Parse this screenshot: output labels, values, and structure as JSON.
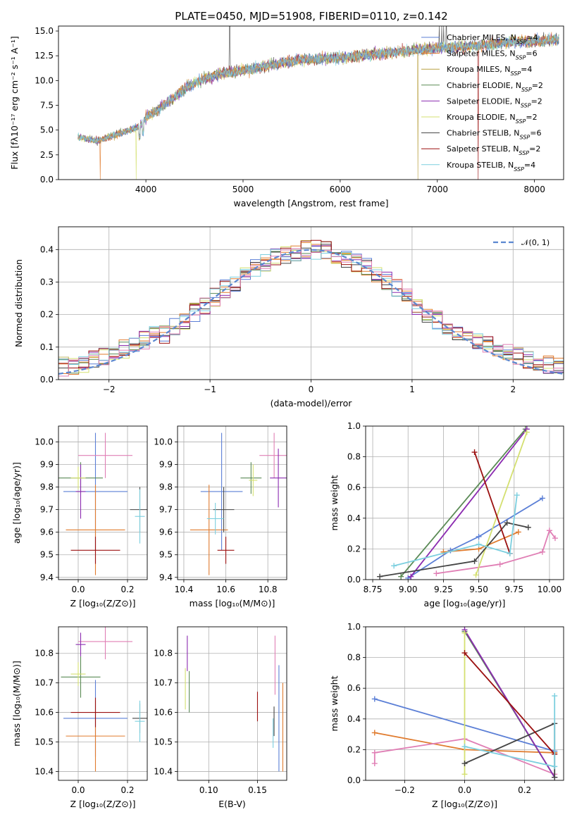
{
  "figure": {
    "title": "PLATE=0450, MJD=51908, FIBERID=0110, z=0.142"
  },
  "colors": {
    "chabrier_miles": "#5b7fd6",
    "salpeter_miles": "#e07b2e",
    "kroupa_miles": "#b8a040",
    "chabrier_elodie": "#5a8a55",
    "salpeter_elodie": "#8b2bb0",
    "kroupa_elodie": "#d4e070",
    "chabrier_stelib": "#444444",
    "salpeter_stelib": "#9b1010",
    "kroupa_stelib": "#7ccfdf",
    "gaussian": "#5b87d0",
    "pink": "#e07fb5",
    "green2": "#2d8f7a"
  },
  "chart_data": [
    {
      "id": "spectrum",
      "type": "line",
      "xlabel": "wavelength [Angstrom, rest frame]",
      "ylabel": "Flux [fλ10⁻¹⁷ erg cm⁻² s⁻¹ A⁻¹]",
      "xlim": [
        3100,
        8300
      ],
      "ylim": [
        0,
        15.5
      ],
      "xticks": [
        "4000",
        "5000",
        "6000",
        "7000",
        "8000"
      ],
      "yticks": [
        "0.0",
        "2.5",
        "5.0",
        "7.5",
        "10.0",
        "12.5",
        "15.0"
      ],
      "legend": [
        "Chabrier MILES, NSSP=4",
        "Salpeter MILES, NSSP=6",
        "Kroupa MILES, NSSP=4",
        "Chabrier ELODIE, NSSP=2",
        "Salpeter ELODIE, NSSP=2",
        "Kroupa ELODIE, NSSP=2",
        "Chabrier STELIB, NSSP=6",
        "Salpeter STELIB, NSSP=2",
        "Kroupa STELIB, NSSP=4"
      ],
      "legend_placement": "top-right",
      "grid": false,
      "continuum_x": [
        3300,
        3500,
        3700,
        3900,
        4000,
        4200,
        4400,
        4600,
        4800,
        5000,
        5200,
        5400,
        5600,
        5800,
        6000,
        6200,
        6400,
        6600,
        6800,
        7000,
        7200,
        7400,
        7600,
        7800,
        8000,
        8200
      ],
      "continuum_y": [
        4.3,
        3.9,
        4.6,
        5.2,
        6.2,
        7.6,
        9.2,
        10.2,
        10.8,
        11.0,
        11.4,
        11.8,
        12.1,
        12.2,
        12.3,
        12.5,
        12.7,
        12.9,
        13.1,
        13.3,
        13.4,
        13.5,
        13.7,
        13.9,
        14.0,
        14.1
      ]
    },
    {
      "id": "residuals",
      "type": "bar",
      "xlabel": "(data-model)/error",
      "ylabel": "Normed distribution",
      "xlim": [
        -2.5,
        2.5
      ],
      "ylim": [
        0,
        0.47
      ],
      "xticks": [
        "−2",
        "−1",
        "0",
        "1",
        "2"
      ],
      "yticks": [
        "0.0",
        "0.1",
        "0.2",
        "0.3",
        "0.4"
      ],
      "grid": true,
      "legend": [
        "𝒩(0, 1)"
      ],
      "legend_placement": "top-right"
    },
    {
      "id": "age_vs_Z",
      "type": "scatter",
      "xlabel": "Z [log₁₀(Z/Z⊙)]",
      "ylabel": "age  [log₁₀(age/yr)]",
      "xlim": [
        -0.08,
        0.28
      ],
      "ylim": [
        9.39,
        10.07
      ],
      "xticks": [
        "0.0",
        "0.2"
      ],
      "yticks": [
        "9.4",
        "9.5",
        "9.6",
        "9.7",
        "9.8",
        "9.9",
        "10.0"
      ],
      "grid": true,
      "points": [
        {
          "c": "chabrier_miles",
          "x": 0.07,
          "xe": 0.13,
          "y": 9.78,
          "ye": 0.26
        },
        {
          "c": "salpeter_miles",
          "x": 0.07,
          "xe": 0.12,
          "y": 9.61,
          "ye": 0.2
        },
        {
          "c": "pink",
          "x": 0.11,
          "xe": 0.11,
          "y": 9.94,
          "ye": 0.1
        },
        {
          "c": "chabrier_elodie",
          "x": 0.01,
          "xe": 0.09,
          "y": 9.84,
          "ye": 0.07
        },
        {
          "c": "salpeter_elodie",
          "x": 0.01,
          "xe": 0.02,
          "y": 9.78,
          "ye": 0.12
        },
        {
          "c": "kroupa_elodie",
          "x": 0.0,
          "xe": 0.03,
          "y": 9.84,
          "ye": 0.05
        },
        {
          "c": "chabrier_stelib",
          "x": 0.25,
          "xe": 0.04,
          "y": 9.7,
          "ye": 0.1
        },
        {
          "c": "salpeter_stelib",
          "x": 0.07,
          "xe": 0.1,
          "y": 9.52,
          "ye": 0.06
        },
        {
          "c": "kroupa_stelib",
          "x": 0.25,
          "xe": 0.02,
          "y": 9.67,
          "ye": 0.12
        }
      ]
    },
    {
      "id": "age_vs_mass",
      "type": "scatter",
      "xlabel": "mass [log₁₀(M/M⊙)]",
      "ylabel": "",
      "xlim": [
        10.37,
        10.89
      ],
      "ylim": [
        9.39,
        10.07
      ],
      "xticks": [
        "10.4",
        "10.6",
        "10.8"
      ],
      "yticks": [
        "9.4",
        "9.5",
        "9.6",
        "9.7",
        "9.8",
        "9.9",
        "10.0"
      ],
      "grid": true,
      "points": [
        {
          "c": "chabrier_miles",
          "x": 10.58,
          "xe": 0.1,
          "y": 9.78,
          "ye": 0.26
        },
        {
          "c": "salpeter_miles",
          "x": 10.52,
          "xe": 0.09,
          "y": 9.61,
          "ye": 0.2
        },
        {
          "c": "pink",
          "x": 10.83,
          "xe": 0.07,
          "y": 9.94,
          "ye": 0.1
        },
        {
          "c": "chabrier_elodie",
          "x": 10.72,
          "xe": 0.05,
          "y": 9.84,
          "ye": 0.07
        },
        {
          "c": "salpeter_elodie",
          "x": 10.85,
          "xe": 0.04,
          "y": 9.84,
          "ye": 0.13
        },
        {
          "c": "kroupa_elodie",
          "x": 10.73,
          "xe": 0.02,
          "y": 9.83,
          "ye": 0.07
        },
        {
          "c": "chabrier_stelib",
          "x": 10.59,
          "xe": 0.05,
          "y": 9.7,
          "ye": 0.1
        },
        {
          "c": "salpeter_stelib",
          "x": 10.6,
          "xe": 0.04,
          "y": 9.52,
          "ye": 0.06
        },
        {
          "c": "kroupa_stelib",
          "x": 10.55,
          "xe": 0.04,
          "y": 9.66,
          "ye": 0.07
        }
      ]
    },
    {
      "id": "weight_vs_age",
      "type": "line",
      "xlabel": "age  [log₁₀(age/yr)]",
      "ylabel": "mass weight",
      "xlim": [
        8.7,
        10.1
      ],
      "ylim": [
        0,
        1.0
      ],
      "xticks": [
        "8.75",
        "9.00",
        "9.25",
        "9.50",
        "9.75",
        "10.00"
      ],
      "yticks": [
        "0.0",
        "0.2",
        "0.4",
        "0.6",
        "0.8",
        "1.0"
      ],
      "grid": true,
      "series": [
        {
          "c": "chabrier_miles",
          "x": [
            9.0,
            9.3,
            9.5,
            9.95
          ],
          "y": [
            0.01,
            0.19,
            0.28,
            0.53
          ]
        },
        {
          "c": "salpeter_miles",
          "x": [
            9.25,
            9.5,
            9.78
          ],
          "y": [
            0.18,
            0.2,
            0.31
          ]
        },
        {
          "c": "pink",
          "x": [
            9.2,
            9.65,
            9.95,
            10.0,
            10.04
          ],
          "y": [
            0.04,
            0.1,
            0.18,
            0.32,
            0.27
          ]
        },
        {
          "c": "chabrier_elodie",
          "x": [
            8.95,
            9.83
          ],
          "y": [
            0.02,
            0.98
          ]
        },
        {
          "c": "salpeter_elodie",
          "x": [
            9.02,
            9.84
          ],
          "y": [
            0.02,
            0.98
          ]
        },
        {
          "c": "kroupa_elodie",
          "x": [
            9.48,
            9.84
          ],
          "y": [
            0.03,
            0.96
          ]
        },
        {
          "c": "chabrier_stelib",
          "x": [
            8.8,
            9.47,
            9.7,
            9.85
          ],
          "y": [
            0.02,
            0.12,
            0.37,
            0.34
          ]
        },
        {
          "c": "salpeter_stelib",
          "x": [
            9.47,
            9.72
          ],
          "y": [
            0.83,
            0.17
          ]
        },
        {
          "c": "kroupa_stelib",
          "x": [
            8.9,
            9.5,
            9.72,
            9.77
          ],
          "y": [
            0.09,
            0.23,
            0.17,
            0.55
          ]
        }
      ]
    },
    {
      "id": "mass_vs_Z",
      "type": "scatter",
      "xlabel": "Z [log₁₀(Z/Z⊙)]",
      "ylabel": "mass [log₁₀(M/M⊙)]",
      "xlim": [
        -0.08,
        0.28
      ],
      "ylim": [
        10.37,
        10.89
      ],
      "xticks": [
        "0.0",
        "0.2"
      ],
      "yticks": [
        "10.4",
        "10.5",
        "10.6",
        "10.7",
        "10.8"
      ],
      "grid": true,
      "points": [
        {
          "c": "chabrier_miles",
          "x": 0.07,
          "xe": 0.13,
          "y": 10.58,
          "ye": 0.13
        },
        {
          "c": "salpeter_miles",
          "x": 0.07,
          "xe": 0.12,
          "y": 10.52,
          "ye": 0.12
        },
        {
          "c": "pink",
          "x": 0.11,
          "xe": 0.11,
          "y": 10.84,
          "ye": 0.06
        },
        {
          "c": "chabrier_elodie",
          "x": 0.01,
          "xe": 0.08,
          "y": 10.72,
          "ye": 0.07
        },
        {
          "c": "salpeter_elodie",
          "x": 0.01,
          "xe": 0.02,
          "y": 10.83,
          "ye": 0.04
        },
        {
          "c": "kroupa_elodie",
          "x": 0.0,
          "xe": 0.03,
          "y": 10.73,
          "ye": 0.04
        },
        {
          "c": "chabrier_stelib",
          "x": 0.25,
          "xe": 0.03,
          "y": 10.58,
          "ye": 0.05
        },
        {
          "c": "salpeter_stelib",
          "x": 0.07,
          "xe": 0.1,
          "y": 10.6,
          "ye": 0.05
        },
        {
          "c": "kroupa_stelib",
          "x": 0.25,
          "xe": 0.02,
          "y": 10.57,
          "ye": 0.07
        }
      ]
    },
    {
      "id": "mass_vs_ebv",
      "type": "scatter",
      "xlabel": "E(B-V)",
      "ylabel": "",
      "xlim": [
        0.068,
        0.18
      ],
      "ylim": [
        10.37,
        10.89
      ],
      "xticks": [
        "0.10",
        "0.15"
      ],
      "yticks": [
        "10.4",
        "10.5",
        "10.6",
        "10.7",
        "10.8"
      ],
      "grid": true,
      "points": [
        {
          "c": "chabrier_miles",
          "x": 0.172,
          "y": 10.58,
          "ye": 0.18
        },
        {
          "c": "salpeter_miles",
          "x": 0.176,
          "y": 10.55,
          "ye": 0.15
        },
        {
          "c": "pink",
          "x": 0.168,
          "y": 10.76,
          "ye": 0.1
        },
        {
          "c": "chabrier_elodie",
          "x": 0.08,
          "y": 10.67,
          "ye": 0.07
        },
        {
          "c": "salpeter_elodie",
          "x": 0.078,
          "y": 10.8,
          "ye": 0.06
        },
        {
          "c": "kroupa_elodie",
          "x": 0.076,
          "y": 10.68,
          "ye": 0.07
        },
        {
          "c": "chabrier_stelib",
          "x": 0.167,
          "y": 10.57,
          "ye": 0.05
        },
        {
          "c": "salpeter_stelib",
          "x": 0.15,
          "y": 10.62,
          "ye": 0.05
        },
        {
          "c": "kroupa_stelib",
          "x": 0.166,
          "y": 10.53,
          "ye": 0.05
        }
      ]
    },
    {
      "id": "weight_vs_Z",
      "type": "line",
      "xlabel": "Z [log₁₀(Z/Z⊙)]",
      "ylabel": "mass weight",
      "xlim": [
        -0.33,
        0.33
      ],
      "ylim": [
        0,
        1.0
      ],
      "xticks": [
        "−0.2",
        "0.0",
        "0.2"
      ],
      "yticks": [
        "0.0",
        "0.2",
        "0.4",
        "0.6",
        "0.8",
        "1.0"
      ],
      "grid": true,
      "series": [
        {
          "c": "chabrier_miles",
          "x": [
            -0.3,
            0.3
          ],
          "y": [
            0.53,
            0.19
          ]
        },
        {
          "c": "salpeter_miles",
          "x": [
            -0.3,
            0.0,
            0.3
          ],
          "y": [
            0.31,
            0.2,
            0.18
          ]
        },
        {
          "c": "pink",
          "x": [
            -0.3,
            -0.3,
            0.0,
            0.3
          ],
          "y": [
            0.11,
            0.18,
            0.27,
            0.04
          ]
        },
        {
          "c": "chabrier_elodie",
          "x": [
            0.0,
            0.3
          ],
          "y": [
            0.97,
            0.02
          ]
        },
        {
          "c": "salpeter_elodie",
          "x": [
            0.0,
            0.3
          ],
          "y": [
            0.98,
            0.02
          ]
        },
        {
          "c": "kroupa_elodie",
          "x": [
            0.0,
            0.0
          ],
          "y": [
            0.96,
            0.04
          ]
        },
        {
          "c": "chabrier_stelib",
          "x": [
            0.0,
            0.3,
            0.3
          ],
          "y": [
            0.11,
            0.37,
            0.02
          ]
        },
        {
          "c": "salpeter_stelib",
          "x": [
            0.0,
            0.3
          ],
          "y": [
            0.83,
            0.17
          ]
        },
        {
          "c": "kroupa_stelib",
          "x": [
            0.0,
            0.3,
            0.3
          ],
          "y": [
            0.22,
            0.09,
            0.55
          ]
        }
      ]
    }
  ]
}
